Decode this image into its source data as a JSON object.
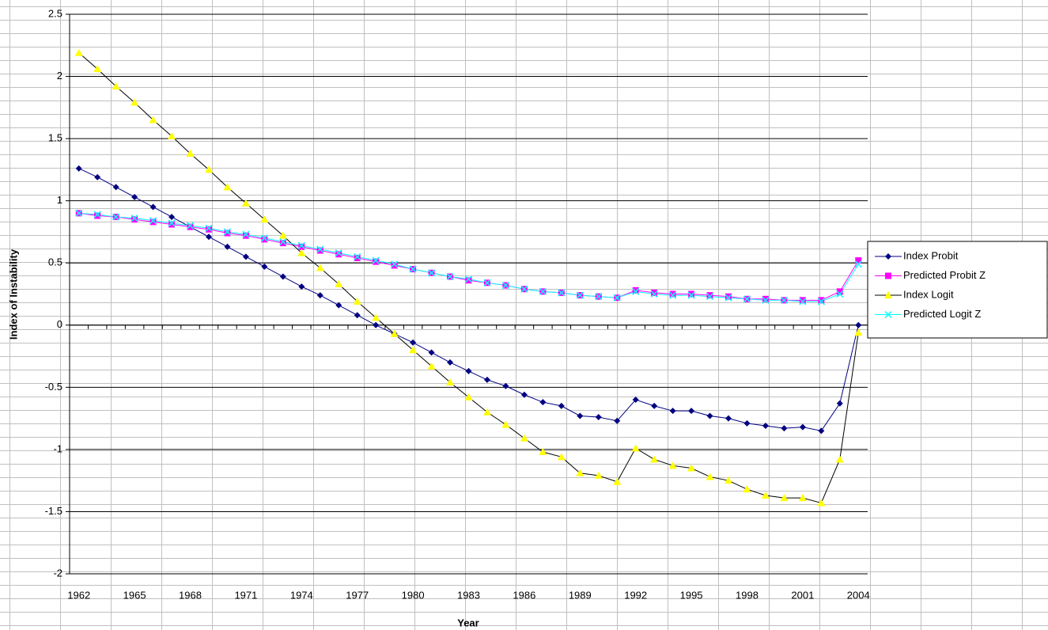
{
  "chart_data": {
    "type": "line",
    "x_label": "Year",
    "y_label": "Index of Instability",
    "categories": [
      "1962",
      null,
      null,
      "1965",
      null,
      null,
      "1968",
      null,
      null,
      "1971",
      null,
      null,
      "1974",
      null,
      null,
      "1977",
      null,
      null,
      "1980",
      null,
      null,
      "1983",
      null,
      null,
      "1986",
      null,
      null,
      "1989",
      null,
      null,
      "1992",
      null,
      null,
      "1995",
      null,
      null,
      "1998",
      null,
      null,
      "2001",
      null,
      null,
      "2004"
    ],
    "ylim": [
      -2,
      2.5
    ],
    "yticks": [
      -2,
      -1.5,
      -1,
      -0.5,
      0,
      0.5,
      1,
      1.5,
      2,
      2.5
    ],
    "grid": true,
    "legend": "right",
    "series": [
      {
        "name": "Index Probit",
        "color": "#000080",
        "line_color": "#000080",
        "marker": "diamond",
        "values": [
          1.26,
          1.19,
          1.11,
          1.03,
          0.95,
          0.87,
          0.79,
          0.71,
          0.63,
          0.55,
          0.47,
          0.39,
          0.31,
          0.24,
          0.16,
          0.08,
          0.0,
          -0.07,
          -0.14,
          -0.22,
          -0.3,
          -0.37,
          -0.44,
          -0.49,
          -0.56,
          -0.62,
          -0.65,
          -0.73,
          -0.74,
          -0.77,
          -0.6,
          -0.65,
          -0.69,
          -0.69,
          -0.73,
          -0.75,
          -0.79,
          -0.81,
          -0.83,
          -0.82,
          -0.85,
          -0.63,
          0.0
        ]
      },
      {
        "name": "Predicted Probit Z",
        "color": "#ff00ff",
        "line_color": "#ff00ff",
        "marker": "square",
        "values": [
          0.9,
          0.88,
          0.87,
          0.85,
          0.83,
          0.81,
          0.79,
          0.77,
          0.74,
          0.72,
          0.69,
          0.66,
          0.63,
          0.6,
          0.57,
          0.54,
          0.51,
          0.48,
          0.45,
          0.42,
          0.39,
          0.36,
          0.34,
          0.32,
          0.29,
          0.27,
          0.26,
          0.24,
          0.23,
          0.22,
          0.28,
          0.26,
          0.25,
          0.25,
          0.24,
          0.23,
          0.21,
          0.21,
          0.2,
          0.2,
          0.2,
          0.27,
          0.52
        ]
      },
      {
        "name": "Index Logit",
        "color": "#ffff00",
        "line_color": "#000000",
        "marker": "triangle",
        "values": [
          2.19,
          2.06,
          1.92,
          1.79,
          1.65,
          1.52,
          1.38,
          1.25,
          1.11,
          0.98,
          0.85,
          0.72,
          0.58,
          0.46,
          0.33,
          0.19,
          0.06,
          -0.07,
          -0.2,
          -0.33,
          -0.46,
          -0.58,
          -0.7,
          -0.8,
          -0.91,
          -1.02,
          -1.06,
          -1.19,
          -1.21,
          -1.26,
          -0.99,
          -1.08,
          -1.13,
          -1.15,
          -1.22,
          -1.25,
          -1.32,
          -1.37,
          -1.39,
          -1.39,
          -1.43,
          -1.08,
          -0.06
        ]
      },
      {
        "name": "Predicted Logit Z",
        "color": "#00ffff",
        "line_color": "#00ffff",
        "marker": "x",
        "values": [
          0.9,
          0.89,
          0.87,
          0.86,
          0.84,
          0.82,
          0.8,
          0.78,
          0.75,
          0.73,
          0.7,
          0.67,
          0.64,
          0.61,
          0.58,
          0.55,
          0.52,
          0.49,
          0.45,
          0.42,
          0.39,
          0.37,
          0.34,
          0.32,
          0.29,
          0.27,
          0.26,
          0.24,
          0.23,
          0.22,
          0.27,
          0.25,
          0.24,
          0.24,
          0.23,
          0.22,
          0.21,
          0.2,
          0.2,
          0.19,
          0.19,
          0.25,
          0.49
        ]
      }
    ]
  }
}
